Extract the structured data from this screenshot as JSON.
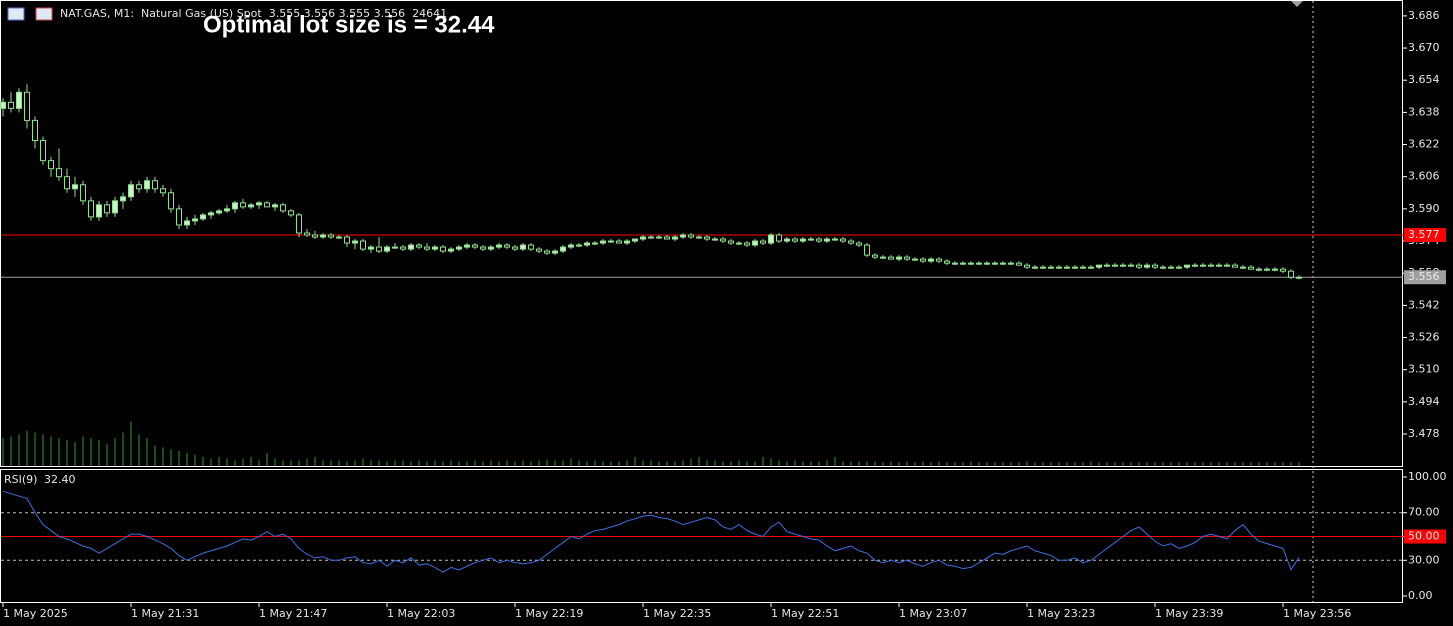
{
  "chart_data": {
    "type": "candlestick",
    "title": "NAT.GAS, M1:  Natural Gas (US) Spot  3.555 3.556 3.555 3.556  24641",
    "annotation": "Optimal lot size is = 32.44",
    "up_fill": "#c6f5c6",
    "down_fill": "#000000",
    "candle_color": "#8fe08f",
    "volume_color": "#2f9a2f",
    "categories": [
      "1 May 2025",
      null,
      null,
      null,
      null,
      null,
      null,
      null,
      null,
      null,
      null,
      null,
      null,
      null,
      null,
      null,
      "1 May 21:31",
      null,
      null,
      null,
      null,
      null,
      null,
      null,
      null,
      null,
      null,
      null,
      null,
      null,
      null,
      null,
      "1 May 21:47",
      null,
      null,
      null,
      null,
      null,
      null,
      null,
      null,
      null,
      null,
      null,
      null,
      null,
      null,
      null,
      "1 May 22:03",
      null,
      null,
      null,
      null,
      null,
      null,
      null,
      null,
      null,
      null,
      null,
      null,
      null,
      null,
      null,
      "1 May 22:19",
      null,
      null,
      null,
      null,
      null,
      null,
      null,
      null,
      null,
      null,
      null,
      null,
      null,
      null,
      null,
      "1 May 22:35",
      null,
      null,
      null,
      null,
      null,
      null,
      null,
      null,
      null,
      null,
      null,
      null,
      null,
      null,
      null,
      "1 May 22:51",
      null,
      null,
      null,
      null,
      null,
      null,
      null,
      null,
      null,
      null,
      null,
      null,
      null,
      null,
      null,
      "1 May 23:07",
      null,
      null,
      null,
      null,
      null,
      null,
      null,
      null,
      null,
      null,
      null,
      null,
      null,
      null,
      null,
      "1 May 23:23",
      null,
      null,
      null,
      null,
      null,
      null,
      null,
      null,
      null,
      null,
      null,
      null,
      null,
      null,
      null,
      "1 May 23:39",
      null,
      null,
      null,
      null,
      null,
      null,
      null,
      null,
      null,
      null,
      null,
      null,
      null,
      null,
      null,
      "1 May 23:56",
      null,
      null
    ],
    "ohlc": [
      [
        3.64,
        3.645,
        3.636,
        3.643
      ],
      [
        3.643,
        3.648,
        3.638,
        3.64
      ],
      [
        3.64,
        3.65,
        3.638,
        3.648
      ],
      [
        3.648,
        3.652,
        3.63,
        3.634
      ],
      [
        3.634,
        3.636,
        3.62,
        3.624
      ],
      [
        3.624,
        3.626,
        3.612,
        3.614
      ],
      [
        3.614,
        3.616,
        3.606,
        3.61
      ],
      [
        3.61,
        3.62,
        3.604,
        3.606
      ],
      [
        3.606,
        3.61,
        3.598,
        3.6
      ],
      [
        3.6,
        3.606,
        3.596,
        3.602
      ],
      [
        3.602,
        3.604,
        3.592,
        3.594
      ],
      [
        3.594,
        3.596,
        3.584,
        3.586
      ],
      [
        3.586,
        3.594,
        3.584,
        3.592
      ],
      [
        3.592,
        3.594,
        3.586,
        3.588
      ],
      [
        3.588,
        3.596,
        3.586,
        3.594
      ],
      [
        3.594,
        3.598,
        3.59,
        3.596
      ],
      [
        3.596,
        3.604,
        3.594,
        3.602
      ],
      [
        3.602,
        3.604,
        3.598,
        3.6
      ],
      [
        3.6,
        3.606,
        3.598,
        3.604
      ],
      [
        3.604,
        3.606,
        3.598,
        3.6
      ],
      [
        3.6,
        3.602,
        3.596,
        3.598
      ],
      [
        3.598,
        3.6,
        3.588,
        3.59
      ],
      [
        3.59,
        3.592,
        3.58,
        3.582
      ],
      [
        3.582,
        3.586,
        3.58,
        3.584
      ],
      [
        3.584,
        3.587,
        3.582,
        3.585
      ],
      [
        3.585,
        3.588,
        3.584,
        3.587
      ],
      [
        3.587,
        3.589,
        3.585,
        3.588
      ],
      [
        3.588,
        3.59,
        3.587,
        3.589
      ],
      [
        3.589,
        3.592,
        3.588,
        3.59
      ],
      [
        3.59,
        3.594,
        3.588,
        3.593
      ],
      [
        3.593,
        3.595,
        3.59,
        3.591
      ],
      [
        3.591,
        3.593,
        3.59,
        3.592
      ],
      [
        3.592,
        3.594,
        3.59,
        3.593
      ],
      [
        3.593,
        3.594,
        3.591,
        3.591
      ],
      [
        3.591,
        3.593,
        3.589,
        3.592
      ],
      [
        3.592,
        3.593,
        3.588,
        3.589
      ],
      [
        3.589,
        3.59,
        3.586,
        3.587
      ],
      [
        3.587,
        3.588,
        3.576,
        3.578
      ],
      [
        3.578,
        3.58,
        3.576,
        3.577
      ],
      [
        3.577,
        3.579,
        3.575,
        3.576
      ],
      [
        3.576,
        3.578,
        3.575,
        3.577
      ],
      [
        3.577,
        3.578,
        3.575,
        3.576
      ],
      [
        3.576,
        3.577,
        3.575,
        3.576
      ],
      [
        3.576,
        3.577,
        3.571,
        3.573
      ],
      [
        3.573,
        3.575,
        3.57,
        3.574
      ],
      [
        3.574,
        3.575,
        3.569,
        3.57
      ],
      [
        3.57,
        3.572,
        3.568,
        3.571
      ],
      [
        3.571,
        3.576,
        3.568,
        3.569
      ],
      [
        3.569,
        3.572,
        3.568,
        3.571
      ],
      [
        3.571,
        3.573,
        3.57,
        3.571
      ],
      [
        3.571,
        3.572,
        3.569,
        3.57
      ],
      [
        3.57,
        3.573,
        3.569,
        3.572
      ],
      [
        3.572,
        3.573,
        3.57,
        3.571
      ],
      [
        3.571,
        3.573,
        3.569,
        3.57
      ],
      [
        3.57,
        3.572,
        3.569,
        3.571
      ],
      [
        3.571,
        3.572,
        3.568,
        3.569
      ],
      [
        3.569,
        3.571,
        3.568,
        3.57
      ],
      [
        3.57,
        3.572,
        3.569,
        3.571
      ],
      [
        3.571,
        3.573,
        3.57,
        3.572
      ],
      [
        3.572,
        3.573,
        3.57,
        3.571
      ],
      [
        3.571,
        3.572,
        3.569,
        3.57
      ],
      [
        3.57,
        3.572,
        3.569,
        3.571
      ],
      [
        3.571,
        3.573,
        3.57,
        3.572
      ],
      [
        3.572,
        3.573,
        3.57,
        3.571
      ],
      [
        3.571,
        3.572,
        3.569,
        3.57
      ],
      [
        3.57,
        3.573,
        3.569,
        3.572
      ],
      [
        3.572,
        3.573,
        3.569,
        3.57
      ],
      [
        3.57,
        3.571,
        3.568,
        3.569
      ],
      [
        3.569,
        3.57,
        3.567,
        3.568
      ],
      [
        3.568,
        3.57,
        3.567,
        3.569
      ],
      [
        3.569,
        3.572,
        3.568,
        3.571
      ],
      [
        3.571,
        3.573,
        3.57,
        3.572
      ],
      [
        3.572,
        3.573,
        3.571,
        3.572
      ],
      [
        3.572,
        3.574,
        3.571,
        3.573
      ],
      [
        3.573,
        3.574,
        3.572,
        3.573
      ],
      [
        3.573,
        3.575,
        3.572,
        3.574
      ],
      [
        3.574,
        3.575,
        3.573,
        3.574
      ],
      [
        3.574,
        3.575,
        3.573,
        3.573
      ],
      [
        3.573,
        3.575,
        3.572,
        3.574
      ],
      [
        3.574,
        3.575,
        3.573,
        3.575
      ],
      [
        3.575,
        3.577,
        3.574,
        3.576
      ],
      [
        3.576,
        3.577,
        3.575,
        3.576
      ],
      [
        3.576,
        3.577,
        3.575,
        3.576
      ],
      [
        3.576,
        3.577,
        3.575,
        3.575
      ],
      [
        3.575,
        3.577,
        3.574,
        3.576
      ],
      [
        3.576,
        3.578,
        3.575,
        3.577
      ],
      [
        3.577,
        3.578,
        3.575,
        3.576
      ],
      [
        3.576,
        3.577,
        3.575,
        3.576
      ],
      [
        3.576,
        3.577,
        3.574,
        3.575
      ],
      [
        3.575,
        3.576,
        3.574,
        3.575
      ],
      [
        3.575,
        3.576,
        3.573,
        3.574
      ],
      [
        3.574,
        3.575,
        3.572,
        3.573
      ],
      [
        3.573,
        3.574,
        3.572,
        3.573
      ],
      [
        3.573,
        3.574,
        3.571,
        3.572
      ],
      [
        3.572,
        3.575,
        3.571,
        3.574
      ],
      [
        3.574,
        3.575,
        3.572,
        3.573
      ],
      [
        3.573,
        3.578,
        3.572,
        3.577
      ],
      [
        3.577,
        3.578,
        3.573,
        3.574
      ],
      [
        3.574,
        3.576,
        3.573,
        3.575
      ],
      [
        3.575,
        3.576,
        3.573,
        3.574
      ],
      [
        3.574,
        3.576,
        3.573,
        3.575
      ],
      [
        3.575,
        3.576,
        3.574,
        3.575
      ],
      [
        3.575,
        3.576,
        3.573,
        3.574
      ],
      [
        3.574,
        3.576,
        3.573,
        3.575
      ],
      [
        3.575,
        3.576,
        3.574,
        3.575
      ],
      [
        3.575,
        3.576,
        3.573,
        3.574
      ],
      [
        3.574,
        3.575,
        3.572,
        3.573
      ],
      [
        3.573,
        3.574,
        3.571,
        3.572
      ],
      [
        3.572,
        3.573,
        3.566,
        3.567
      ],
      [
        3.567,
        3.568,
        3.565,
        3.566
      ],
      [
        3.566,
        3.567,
        3.565,
        3.566
      ],
      [
        3.566,
        3.567,
        3.565,
        3.565
      ],
      [
        3.565,
        3.567,
        3.564,
        3.566
      ],
      [
        3.566,
        3.567,
        3.564,
        3.565
      ],
      [
        3.565,
        3.566,
        3.564,
        3.565
      ],
      [
        3.565,
        3.566,
        3.563,
        3.564
      ],
      [
        3.564,
        3.566,
        3.563,
        3.565
      ],
      [
        3.565,
        3.566,
        3.563,
        3.564
      ],
      [
        3.564,
        3.565,
        3.562,
        3.563
      ],
      [
        3.563,
        3.564,
        3.562,
        3.563
      ],
      [
        3.563,
        3.564,
        3.562,
        3.563
      ],
      [
        3.563,
        3.564,
        3.562,
        3.563
      ],
      [
        3.563,
        3.564,
        3.562,
        3.563
      ],
      [
        3.563,
        3.564,
        3.562,
        3.563
      ],
      [
        3.563,
        3.564,
        3.562,
        3.563
      ],
      [
        3.563,
        3.564,
        3.562,
        3.563
      ],
      [
        3.563,
        3.564,
        3.562,
        3.563
      ],
      [
        3.563,
        3.564,
        3.562,
        3.562
      ],
      [
        3.562,
        3.563,
        3.56,
        3.561
      ],
      [
        3.561,
        3.562,
        3.56,
        3.561
      ],
      [
        3.561,
        3.562,
        3.56,
        3.561
      ],
      [
        3.561,
        3.562,
        3.56,
        3.561
      ],
      [
        3.561,
        3.562,
        3.56,
        3.561
      ],
      [
        3.561,
        3.562,
        3.56,
        3.561
      ],
      [
        3.561,
        3.562,
        3.56,
        3.561
      ],
      [
        3.561,
        3.562,
        3.56,
        3.561
      ],
      [
        3.561,
        3.562,
        3.56,
        3.561
      ],
      [
        3.561,
        3.562,
        3.56,
        3.562
      ],
      [
        3.562,
        3.563,
        3.561,
        3.562
      ],
      [
        3.562,
        3.563,
        3.561,
        3.562
      ],
      [
        3.562,
        3.563,
        3.561,
        3.562
      ],
      [
        3.562,
        3.563,
        3.561,
        3.562
      ],
      [
        3.562,
        3.563,
        3.56,
        3.561
      ],
      [
        3.561,
        3.563,
        3.56,
        3.562
      ],
      [
        3.562,
        3.563,
        3.56,
        3.561
      ],
      [
        3.561,
        3.562,
        3.56,
        3.561
      ],
      [
        3.561,
        3.562,
        3.56,
        3.561
      ],
      [
        3.561,
        3.562,
        3.56,
        3.561
      ],
      [
        3.561,
        3.562,
        3.56,
        3.562
      ],
      [
        3.562,
        3.563,
        3.561,
        3.562
      ],
      [
        3.562,
        3.563,
        3.561,
        3.562
      ],
      [
        3.562,
        3.563,
        3.561,
        3.562
      ],
      [
        3.562,
        3.563,
        3.561,
        3.562
      ],
      [
        3.562,
        3.563,
        3.561,
        3.562
      ],
      [
        3.562,
        3.563,
        3.561,
        3.561
      ],
      [
        3.561,
        3.562,
        3.56,
        3.561
      ],
      [
        3.561,
        3.562,
        3.56,
        3.56
      ],
      [
        3.56,
        3.561,
        3.559,
        3.56
      ],
      [
        3.56,
        3.561,
        3.559,
        3.56
      ],
      [
        3.56,
        3.561,
        3.559,
        3.56
      ],
      [
        3.56,
        3.561,
        3.558,
        3.559
      ],
      [
        3.559,
        3.56,
        3.555,
        3.556
      ],
      [
        3.556,
        3.557,
        3.555,
        3.556
      ]
    ],
    "volumes": [
      30,
      32,
      34,
      38,
      36,
      34,
      32,
      30,
      28,
      26,
      32,
      30,
      28,
      24,
      30,
      36,
      48,
      34,
      30,
      22,
      20,
      18,
      16,
      14,
      12,
      10,
      8,
      10,
      8,
      6,
      8,
      10,
      6,
      14,
      8,
      6,
      6,
      6,
      8,
      10,
      6,
      6,
      6,
      5,
      6,
      8,
      6,
      6,
      5,
      6,
      6,
      5,
      6,
      5,
      6,
      5,
      6,
      5,
      5,
      6,
      5,
      6,
      5,
      6,
      5,
      6,
      5,
      6,
      7,
      6,
      6,
      8,
      6,
      5,
      6,
      5,
      5,
      5,
      6,
      10,
      6,
      6,
      5,
      5,
      5,
      6,
      8,
      10,
      6,
      6,
      5,
      5,
      6,
      5,
      5,
      10,
      8,
      6,
      5,
      6,
      5,
      5,
      5,
      6,
      10,
      5,
      5,
      5,
      5,
      5,
      4,
      5,
      4,
      5,
      4,
      5,
      4,
      5,
      4,
      4,
      4,
      5,
      4,
      4,
      4,
      4,
      4,
      4,
      5,
      4,
      4,
      4,
      4,
      4,
      4,
      4,
      5,
      4,
      4,
      4,
      4,
      4,
      4,
      4,
      4,
      4,
      4,
      4,
      4,
      4,
      4,
      4,
      4,
      4,
      4,
      4,
      4,
      4,
      4,
      4,
      4,
      4,
      4
    ],
    "volume_lim": [
      0,
      500
    ],
    "ylim": [
      3.4621,
      3.6934
    ],
    "yticks": [
      3.686,
      {
        "value": 3.67,
        "label": "3.670"
      },
      3.654,
      3.638,
      3.622,
      3.606,
      {
        "value": 3.59,
        "label": "3.590"
      },
      3.574,
      3.558,
      3.542,
      3.526,
      {
        "value": 3.51,
        "label": "3.510"
      },
      3.494,
      3.478
    ],
    "hlines": [
      {
        "value": 3.577,
        "color": "#ff0000",
        "text_color": "#ffffff"
      },
      {
        "value": 3.556,
        "color": "#9e9e9e",
        "text_color": "#e8e8e8"
      }
    ],
    "rsi": {
      "name": "RSI(9)",
      "last_label": "32.40",
      "color": "#3f6fe0",
      "values": [
        88,
        86,
        84,
        82,
        70,
        60,
        55,
        50,
        48,
        45,
        42,
        40,
        36,
        40,
        44,
        48,
        52,
        52,
        50,
        47,
        44,
        40,
        34,
        30,
        33,
        36,
        38,
        40,
        42,
        45,
        48,
        47,
        50,
        54,
        50,
        52,
        48,
        40,
        35,
        32,
        33,
        30,
        30,
        32,
        33,
        28,
        27,
        30,
        25,
        30,
        28,
        32,
        26,
        27,
        24,
        20,
        24,
        22,
        25,
        28,
        30,
        32,
        28,
        30,
        28,
        27,
        28,
        30,
        35,
        40,
        45,
        50,
        48,
        52,
        55,
        56,
        58,
        60,
        63,
        65,
        67,
        68,
        66,
        65,
        63,
        60,
        62,
        64,
        66,
        64,
        58,
        56,
        60,
        55,
        52,
        50,
        58,
        62,
        54,
        52,
        50,
        48,
        47,
        42,
        38,
        40,
        42,
        38,
        36,
        30,
        28,
        30,
        28,
        30,
        27,
        25,
        28,
        30,
        26,
        25,
        23,
        24,
        28,
        32,
        36,
        35,
        38,
        40,
        42,
        38,
        36,
        34,
        30,
        30,
        32,
        28,
        30,
        35,
        40,
        45,
        50,
        55,
        58,
        52,
        46,
        42,
        44,
        40,
        42,
        45,
        50,
        52,
        50,
        48,
        55,
        60,
        52,
        46,
        44,
        42,
        40,
        22,
        32.4
      ],
      "ylim": [
        -5.9,
        105.9
      ],
      "yticks": [
        {
          "value": 100,
          "label": "100.00"
        },
        {
          "value": 70,
          "label": "70.00"
        },
        {
          "value": 50,
          "label": "50.00"
        },
        {
          "value": 30,
          "label": "30.00"
        },
        {
          "value": 0,
          "label": "0.00"
        }
      ],
      "levels": [
        {
          "value": 70,
          "color": "#bdbdbd",
          "dashed": true
        },
        {
          "value": 50,
          "color": "#ff0000",
          "dashed": false
        },
        {
          "value": 30,
          "color": "#bdbdbd",
          "dashed": true
        }
      ]
    }
  }
}
